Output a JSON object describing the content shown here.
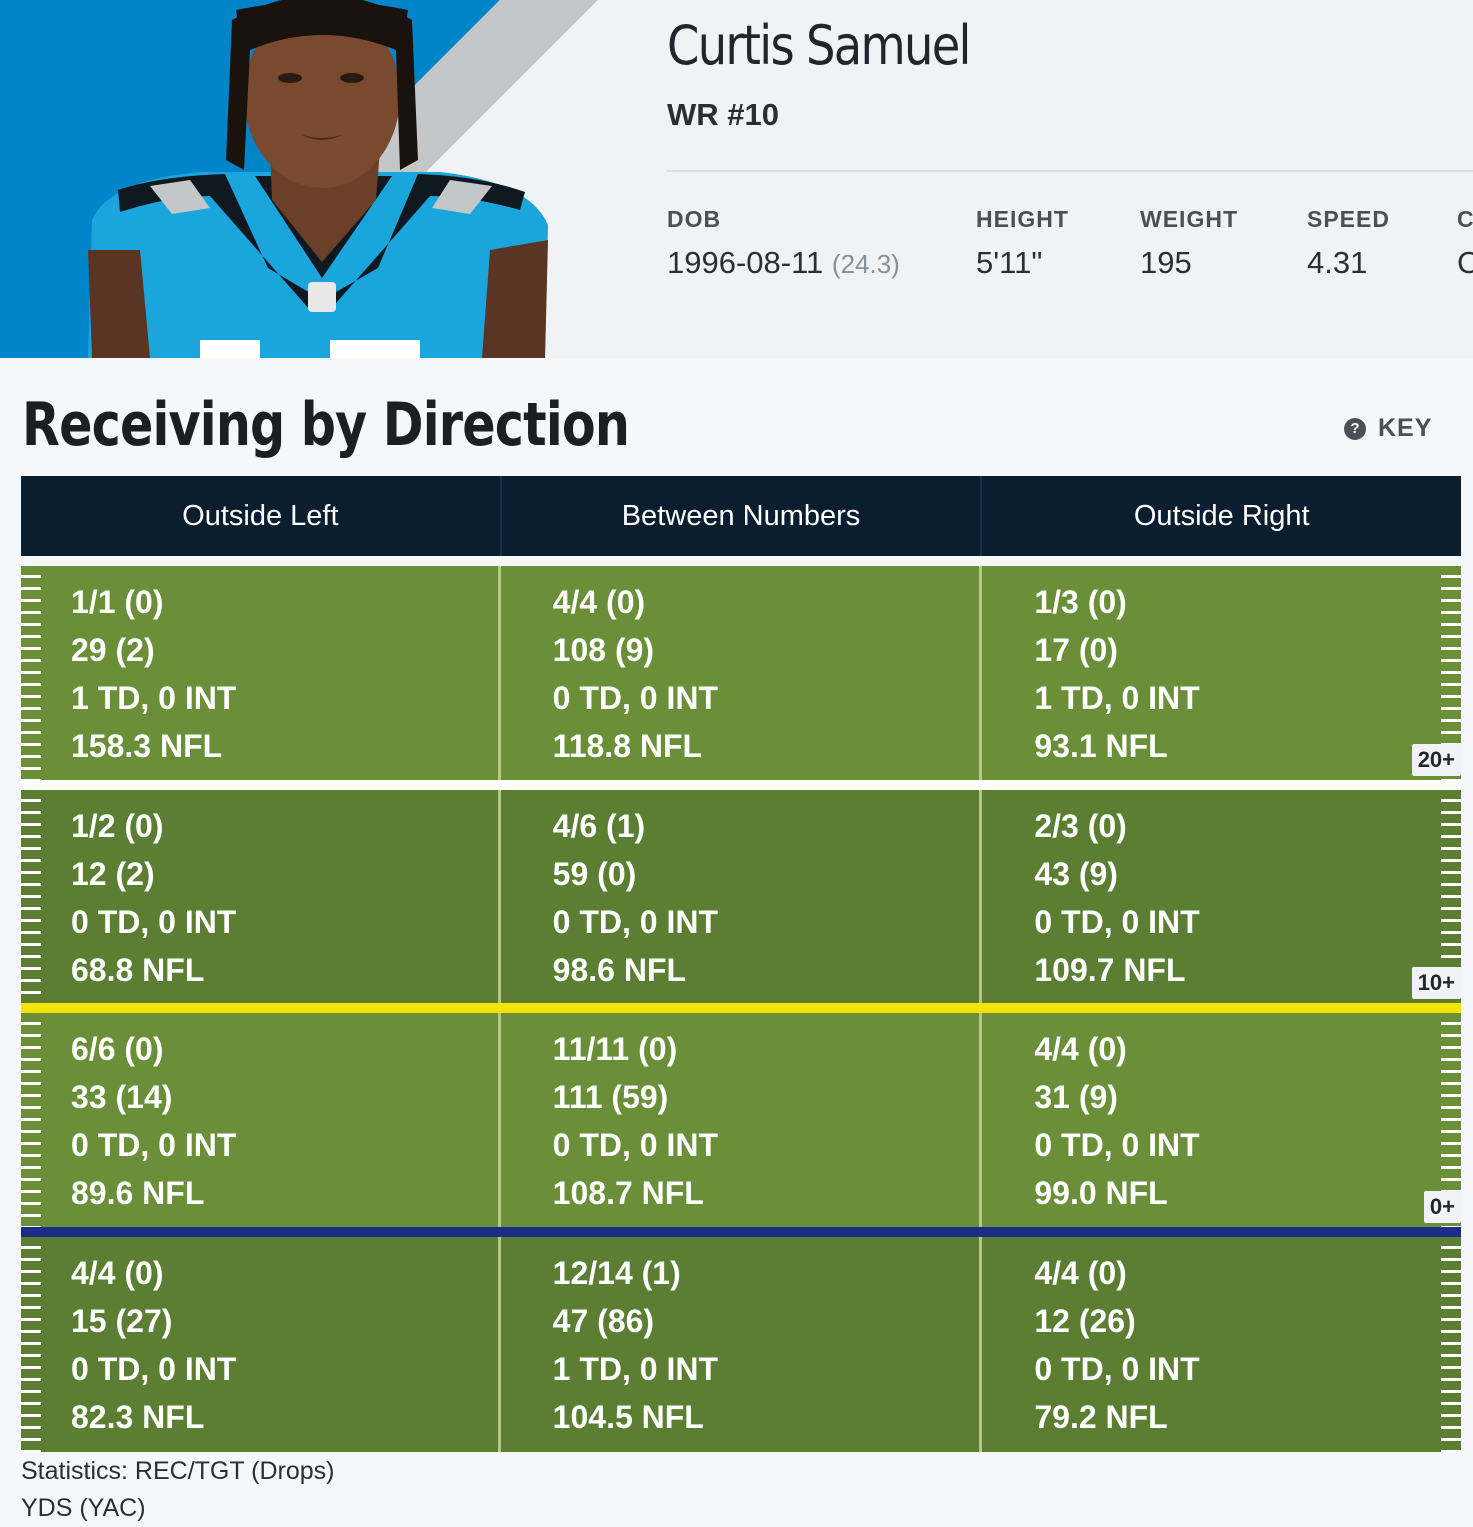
{
  "player": {
    "name": "Curtis Samuel",
    "position": "WR #10",
    "attributes": [
      {
        "label": "DOB",
        "value": "1996-08-11",
        "sub": "(24.3)"
      },
      {
        "label": "HEIGHT",
        "value": "5'11\"",
        "sub": ""
      },
      {
        "label": "WEIGHT",
        "value": "195",
        "sub": ""
      },
      {
        "label": "SPEED",
        "value": "4.31",
        "sub": ""
      },
      {
        "label": "C",
        "value": "C",
        "sub": ""
      }
    ],
    "colors": {
      "team_blue": "#0085ca",
      "jersey_black": "#101820"
    }
  },
  "section": {
    "title": "Receiving by Direction",
    "key_label": "KEY",
    "key_icon": "question-circle-icon"
  },
  "columns": [
    "Outside Left",
    "Between Numbers",
    "Outside Right"
  ],
  "zones": [
    {
      "marker": "20+",
      "cells": [
        [
          "1/1 (0)",
          "29 (2)",
          "1 TD, 0 INT",
          "158.3 NFL"
        ],
        [
          "4/4 (0)",
          "108 (9)",
          "0 TD, 0 INT",
          "118.8 NFL"
        ],
        [
          "1/3 (0)",
          "17 (0)",
          "1 TD, 0 INT",
          "93.1 NFL"
        ]
      ]
    },
    {
      "marker": "10+",
      "cells": [
        [
          "1/2 (0)",
          "12 (2)",
          "0 TD, 0 INT",
          "68.8 NFL"
        ],
        [
          "4/6 (1)",
          "59 (0)",
          "0 TD, 0 INT",
          "98.6 NFL"
        ],
        [
          "2/3 (0)",
          "43 (9)",
          "0 TD, 0 INT",
          "109.7 NFL"
        ]
      ]
    },
    {
      "marker": "0+",
      "cells": [
        [
          "6/6 (0)",
          "33 (14)",
          "0 TD, 0 INT",
          "89.6 NFL"
        ],
        [
          "11/11 (0)",
          "111 (59)",
          "0 TD, 0 INT",
          "108.7 NFL"
        ],
        [
          "4/4 (0)",
          "31 (9)",
          "0 TD, 0 INT",
          "99.0 NFL"
        ]
      ]
    },
    {
      "marker": "",
      "cells": [
        [
          "4/4 (0)",
          "15 (27)",
          "0 TD, 0 INT",
          "82.3 NFL"
        ],
        [
          "12/14 (1)",
          "47 (86)",
          "1 TD, 0 INT",
          "104.5 NFL"
        ],
        [
          "4/4 (0)",
          "12 (26)",
          "0 TD, 0 INT",
          "79.2 NFL"
        ]
      ]
    }
  ],
  "field_colors": {
    "light": "#6a8f38",
    "dark": "#5b7e33",
    "first_down_line": "#f5e400",
    "line_of_scrimmage": "#1d2c86"
  },
  "footnotes": [
    "Statistics: REC/TGT (Drops)",
    "YDS (YAC)"
  ]
}
